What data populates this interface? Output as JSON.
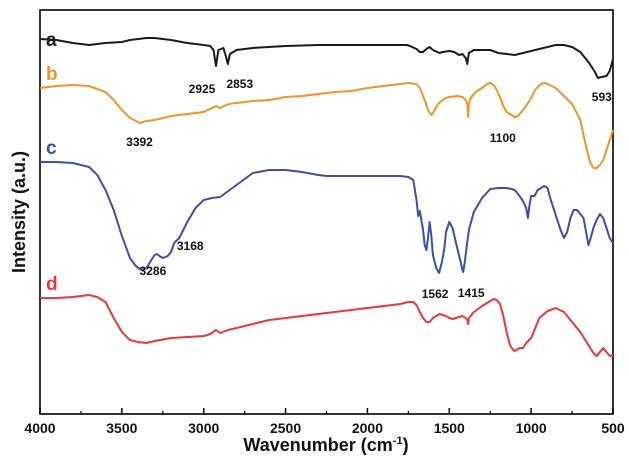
{
  "chart_data": {
    "type": "line",
    "xlabel_main": "Wavenumber (cm",
    "xlabel_sup": "-1",
    "xlabel_end": ")",
    "ylabel": "Intensity (a.u.)",
    "xlim": [
      4000,
      500
    ],
    "xticks": [
      4000,
      3500,
      3000,
      2500,
      2000,
      1500,
      1000,
      500
    ],
    "grid": false,
    "colors": {
      "a": "#1a1a1a",
      "b": "#f0932b",
      "c": "#3d4fa3",
      "d": "#e8383a"
    },
    "series": [
      {
        "name": "a",
        "x": [
          4000,
          3900,
          3800,
          3750,
          3700,
          3600,
          3500,
          3450,
          3400,
          3350,
          3300,
          3200,
          3100,
          3000,
          2960,
          2940,
          2925,
          2910,
          2880,
          2865,
          2853,
          2840,
          2800,
          2700,
          2500,
          2300,
          2100,
          1900,
          1800,
          1760,
          1740,
          1700,
          1680,
          1660,
          1640,
          1620,
          1600,
          1560,
          1540,
          1500,
          1470,
          1440,
          1420,
          1400,
          1390,
          1385,
          1380,
          1370,
          1350,
          1300,
          1250,
          1200,
          1150,
          1100,
          1050,
          1000,
          950,
          900,
          850,
          800,
          750,
          700,
          650,
          610,
          593,
          570,
          540,
          520,
          500
        ],
        "y": [
          39,
          40,
          43,
          44,
          45,
          43,
          42,
          40,
          39,
          38,
          38,
          40,
          43,
          45,
          46,
          50,
          66,
          50,
          48,
          56,
          64,
          54,
          50,
          48,
          46,
          45,
          45,
          45,
          45,
          45,
          46,
          49,
          52,
          52,
          49,
          47,
          50,
          53,
          52,
          51,
          52,
          55,
          54,
          58,
          64,
          58,
          53,
          52,
          50,
          50,
          50,
          53,
          54,
          55,
          53,
          51,
          49,
          47,
          45,
          45,
          47,
          52,
          62,
          72,
          78,
          77,
          76,
          71,
          59
        ]
      },
      {
        "name": "b",
        "x": [
          4000,
          3900,
          3800,
          3700,
          3600,
          3550,
          3500,
          3450,
          3400,
          3392,
          3350,
          3300,
          3250,
          3200,
          3100,
          3000,
          2950,
          2925,
          2900,
          2850,
          2800,
          2700,
          2600,
          2500,
          2400,
          2300,
          2200,
          2100,
          2000,
          1900,
          1800,
          1750,
          1700,
          1680,
          1650,
          1630,
          1610,
          1600,
          1590,
          1570,
          1550,
          1520,
          1500,
          1450,
          1420,
          1400,
          1390,
          1385,
          1380,
          1370,
          1340,
          1300,
          1270,
          1250,
          1230,
          1210,
          1190,
          1170,
          1150,
          1130,
          1110,
          1100,
          1080,
          1060,
          1040,
          1020,
          1000,
          980,
          960,
          940,
          920,
          900,
          850,
          800,
          750,
          700,
          680,
          660,
          640,
          620,
          600,
          580,
          560,
          540,
          520,
          500
        ],
        "y": [
          88,
          86,
          85,
          86,
          92,
          100,
          110,
          118,
          122,
          123,
          121,
          120,
          118,
          116,
          114,
          112,
          108,
          106,
          108,
          104,
          103,
          101,
          100,
          97,
          96,
          94,
          92,
          91,
          88,
          86,
          84,
          83,
          84,
          88,
          100,
          110,
          115,
          113,
          110,
          104,
          101,
          98,
          97,
          96,
          97,
          100,
          104,
          117,
          104,
          98,
          92,
          88,
          84,
          83,
          85,
          90,
          97,
          106,
          112,
          114,
          116,
          117,
          116,
          112,
          108,
          103,
          98,
          91,
          87,
          84,
          83,
          84,
          88,
          96,
          104,
          120,
          135,
          150,
          162,
          168,
          168,
          165,
          160,
          150,
          140,
          130
        ]
      },
      {
        "name": "c",
        "x": [
          4000,
          3900,
          3800,
          3700,
          3650,
          3600,
          3550,
          3500,
          3450,
          3420,
          3400,
          3380,
          3350,
          3320,
          3300,
          3286,
          3270,
          3250,
          3220,
          3200,
          3180,
          3168,
          3150,
          3100,
          3050,
          3000,
          2950,
          2900,
          2800,
          2700,
          2600,
          2500,
          2400,
          2300,
          2250,
          2200,
          2100,
          2000,
          1900,
          1800,
          1750,
          1720,
          1700,
          1690,
          1680,
          1660,
          1650,
          1640,
          1630,
          1620,
          1610,
          1600,
          1580,
          1562,
          1545,
          1530,
          1520,
          1500,
          1480,
          1460,
          1440,
          1430,
          1420,
          1415,
          1405,
          1395,
          1380,
          1350,
          1300,
          1250,
          1200,
          1150,
          1120,
          1100,
          1080,
          1050,
          1030,
          1020,
          1010,
          1000,
          980,
          960,
          940,
          920,
          900,
          880,
          860,
          840,
          820,
          800,
          780,
          760,
          740,
          720,
          700,
          680,
          660,
          650,
          640,
          620,
          600,
          580,
          560,
          540,
          520,
          500
        ],
        "y": [
          162,
          162,
          163,
          167,
          175,
          190,
          210,
          236,
          258,
          265,
          268,
          270,
          268,
          260,
          255,
          254,
          256,
          258,
          256,
          252,
          243,
          241,
          238,
          222,
          208,
          200,
          198,
          197,
          185,
          173,
          170,
          170,
          172,
          175,
          176,
          176,
          176,
          176,
          176,
          176,
          177,
          180,
          200,
          216,
          211,
          230,
          245,
          250,
          238,
          222,
          235,
          255,
          268,
          273,
          262,
          248,
          232,
          222,
          228,
          242,
          256,
          262,
          270,
          272,
          262,
          248,
          230,
          212,
          198,
          189,
          188,
          188,
          189,
          190,
          194,
          201,
          208,
          218,
          205,
          196,
          196,
          190,
          188,
          186,
          188,
          200,
          210,
          220,
          230,
          238,
          232,
          218,
          210,
          210,
          214,
          218,
          236,
          245,
          240,
          228,
          220,
          214,
          218,
          228,
          238,
          243
        ]
      },
      {
        "name": "d",
        "x": [
          4000,
          3900,
          3800,
          3750,
          3700,
          3650,
          3600,
          3550,
          3500,
          3450,
          3400,
          3350,
          3300,
          3200,
          3100,
          3000,
          2960,
          2925,
          2900,
          2853,
          2800,
          2700,
          2600,
          2500,
          2400,
          2300,
          2200,
          2100,
          2000,
          1900,
          1800,
          1750,
          1720,
          1700,
          1680,
          1660,
          1640,
          1620,
          1600,
          1580,
          1560,
          1540,
          1520,
          1500,
          1480,
          1460,
          1440,
          1420,
          1400,
          1390,
          1385,
          1380,
          1370,
          1350,
          1300,
          1250,
          1230,
          1210,
          1190,
          1170,
          1150,
          1130,
          1110,
          1100,
          1090,
          1070,
          1050,
          1030,
          1000,
          950,
          900,
          850,
          800,
          750,
          700,
          650,
          620,
          600,
          580,
          560,
          540,
          520,
          500
        ],
        "y": [
          298,
          298,
          297,
          296,
          295,
          297,
          302,
          318,
          332,
          340,
          342,
          343,
          341,
          338,
          337,
          336,
          334,
          330,
          333,
          330,
          328,
          324,
          320,
          318,
          316,
          314,
          312,
          310,
          308,
          306,
          304,
          302,
          302,
          305,
          312,
          318,
          322,
          322,
          318,
          316,
          314,
          315,
          316,
          318,
          319,
          318,
          317,
          316,
          318,
          320,
          324,
          318,
          316,
          312,
          306,
          301,
          299,
          300,
          304,
          316,
          332,
          345,
          350,
          351,
          350,
          348,
          348,
          343,
          338,
          318,
          311,
          308,
          312,
          322,
          332,
          345,
          353,
          356,
          352,
          348,
          352,
          356,
          355
        ]
      }
    ],
    "annotations": [
      {
        "text": "2925",
        "x": 2925,
        "y": 67
      },
      {
        "text": "2853",
        "x": 2853,
        "y": 64
      },
      {
        "text": "3392",
        "x": 3392,
        "y": 124
      },
      {
        "text": "1100",
        "x": 1100,
        "y": 118
      },
      {
        "text": "593",
        "x": 593,
        "y": 79
      },
      {
        "text": "3286",
        "x": 3286,
        "y": 255
      },
      {
        "text": "3168",
        "x": 3168,
        "y": 242
      },
      {
        "text": "1562",
        "x": 1562,
        "y": 274
      },
      {
        "text": "1415",
        "x": 1415,
        "y": 273
      }
    ]
  }
}
